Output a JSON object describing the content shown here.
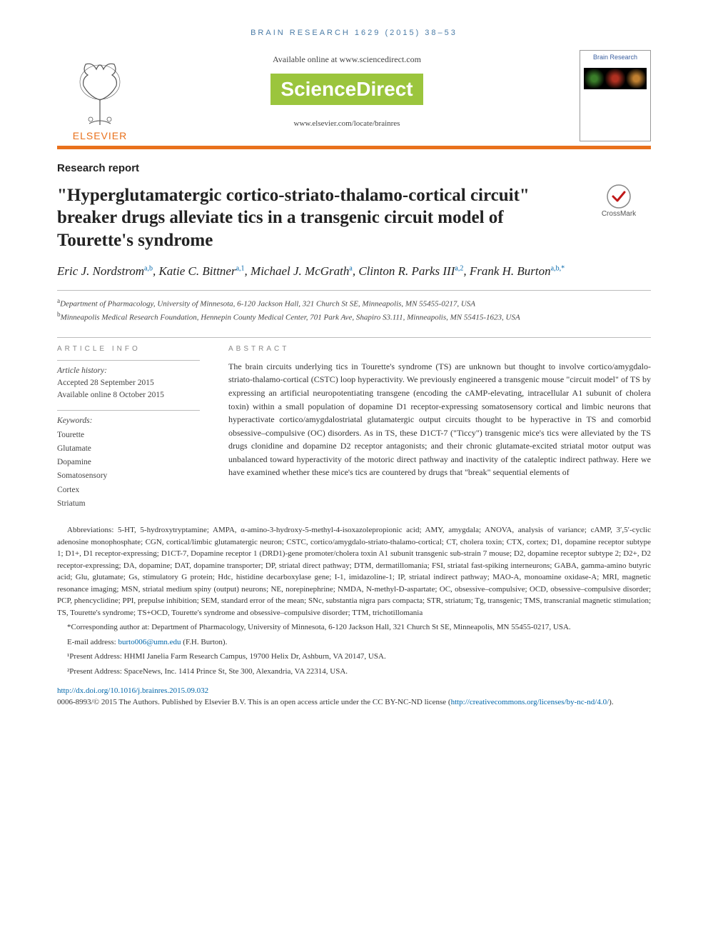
{
  "running_head": "BRAIN RESEARCH 1629 (2015) 38–53",
  "masthead": {
    "elsevier_word": "ELSEVIER",
    "available_line": "Available online at www.sciencedirect.com",
    "sd_logo_text": "ScienceDirect",
    "journal_url": "www.elsevier.com/locate/brainres",
    "cover_title": "Brain Research"
  },
  "article_type": "Research report",
  "title": "\"Hyperglutamatergic cortico-striato-thalamo-cortical circuit\" breaker drugs alleviate tics in a transgenic circuit model of Tourette's syndrome",
  "crossmark_label": "CrossMark",
  "authors_html": "Eric J. Nordstrom<sup class=\"sup-link\">a,b</sup>, Katie C. Bittner<sup class=\"sup-link\">a,1</sup>, Michael J. McGrath<sup class=\"sup-link\">a</sup>, Clinton R. Parks III<sup class=\"sup-link\">a,2</sup>, Frank H. Burton<sup class=\"sup-link\">a,b,*</sup>",
  "affiliations": [
    {
      "sup": "a",
      "text": "Department of Pharmacology, University of Minnesota, 6-120 Jackson Hall, 321 Church St SE, Minneapolis, MN 55455-0217, USA"
    },
    {
      "sup": "b",
      "text": "Minneapolis Medical Research Foundation, Hennepin County Medical Center, 701 Park Ave, Shapiro S3.111, Minneapolis, MN 55415-1623, USA"
    }
  ],
  "info": {
    "head": "ARTICLE INFO",
    "history_label": "Article history:",
    "accepted": "Accepted 28 September 2015",
    "online": "Available online 8 October 2015",
    "keywords_label": "Keywords:",
    "keywords": [
      "Tourette",
      "Glutamate",
      "Dopamine",
      "Somatosensory",
      "Cortex",
      "Striatum"
    ]
  },
  "abstract": {
    "head": "ABSTRACT",
    "text": "The brain circuits underlying tics in Tourette's syndrome (TS) are unknown but thought to involve cortico/amygdalo-striato-thalamo-cortical (CSTC) loop hyperactivity. We previously engineered a transgenic mouse \"circuit model\" of TS by expressing an artificial neuropotentiating transgene (encoding the cAMP-elevating, intracellular A1 subunit of cholera toxin) within a small population of dopamine D1 receptor-expressing somatosensory cortical and limbic neurons that hyperactivate cortico/amygdalostriatal glutamatergic output circuits thought to be hyperactive in TS and comorbid obsessive–compulsive (OC) disorders. As in TS, these D1CT-7 (\"Ticcy\") transgenic mice's tics were alleviated by the TS drugs clonidine and dopamine D2 receptor antagonists; and their chronic glutamate-excited striatal motor output was unbalanced toward hyperactivity of the motoric direct pathway and inactivity of the cataleptic indirect pathway. Here we have examined whether these mice's tics are countered by drugs that \"break\" sequential elements of"
  },
  "abbreviations": "Abbreviations: 5-HT, 5-hydroxytryptamine; AMPA, α-amino-3-hydroxy-5-methyl-4-isoxazolepropionic acid; AMY, amygdala; ANOVA, analysis of variance; cAMP, 3′,5′-cyclic adenosine monophosphate; CGN, cortical/limbic glutamatergic neuron; CSTC, cortico/amygdalo-striato-thalamo-cortical; CT, cholera toxin; CTX, cortex; D1, dopamine receptor subtype 1; D1+, D1 receptor-expressing; D1CT-7, Dopamine receptor 1 (DRD1)-gene promoter/cholera toxin A1 subunit transgenic sub-strain 7 mouse; D2, dopamine receptor subtype 2; D2+, D2 receptor-expressing; DA, dopamine; DAT, dopamine transporter; DP, striatal direct pathway; DTM, dermatillomania; FSI, striatal fast-spiking interneurons; GABA, gamma-amino butyric acid; Glu, glutamate; Gs, stimulatory G protein; Hdc, histidine decarboxylase gene; I-1, imidazoline-1; IP, striatal indirect pathway; MAO-A, monoamine oxidase-A; MRI, magnetic resonance imaging; MSN, striatal medium spiny (output) neurons; NE, norepinephrine; NMDA, N-methyl-D-aspartate; OC, obsessive–compulsive; OCD, obsessive–compulsive disorder; PCP, phencyclidine; PPI, prepulse inhibition; SEM, standard error of the mean; SNc, substantia nigra pars compacta; STR, striatum; Tg, transgenic; TMS, transcranial magnetic stimulation; TS, Tourette's syndrome; TS+OCD, Tourette's syndrome and obsessive–compulsive disorder; TTM, trichotillomania",
  "corresponding": "*Corresponding author at: Department of Pharmacology, University of Minnesota, 6-120 Jackson Hall, 321 Church St SE, Minneapolis, MN 55455-0217, USA.",
  "email_label": "E-mail address: ",
  "email": "burto006@umn.edu",
  "email_paren": " (F.H. Burton).",
  "present1": "¹Present Address: HHMI Janelia Farm Research Campus, 19700 Helix Dr, Ashburn, VA 20147, USA.",
  "present2": "²Present Address: SpaceNews, Inc. 1414 Prince St, Ste 300, Alexandria, VA 22314, USA.",
  "doi": "http://dx.doi.org/10.1016/j.brainres.2015.09.032",
  "copyright_line": "0006-8993/© 2015 The Authors. Published by Elsevier B.V. This is an open access article under the CC BY-NC-ND license (",
  "cc_url": "http://creativecommons.org/licenses/by-nc-nd/4.0/",
  "copyright_close": ").",
  "colors": {
    "orange": "#e9711c",
    "sd_green": "#9bc53d",
    "link_blue": "#0066aa",
    "head_blue": "#4a7ba6"
  }
}
